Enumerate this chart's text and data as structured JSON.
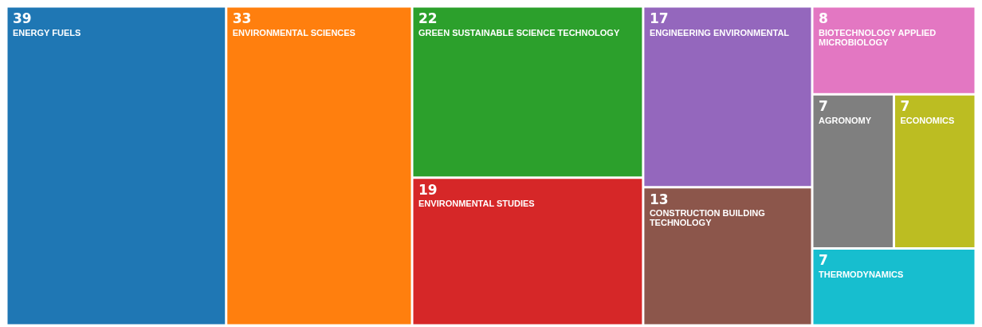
{
  "chart_data": {
    "type": "other",
    "categories": [
      "ENERGY FUELS",
      "ENVIRONMENTAL SCIENCES",
      "GREEN SUSTAINABLE SCIENCE TECHNOLOGY",
      "ENVIRONMENTAL STUDIES",
      "ENGINEERING ENVIRONMENTAL",
      "CONSTRUCTION BUILDING TECHNOLOGY",
      "BIOTECHNOLOGY APPLIED MICROBIOLOGY",
      "AGRONOMY",
      "ECONOMICS",
      "THERMODYNAMICS"
    ],
    "values": [
      39,
      33,
      22,
      19,
      17,
      13,
      8,
      7,
      7,
      7
    ],
    "colors": [
      "#1f77b4",
      "#ff7f0e",
      "#2ca02c",
      "#d62728",
      "#9467bd",
      "#8c564b",
      "#e377c2",
      "#7f7f7f",
      "#bcbd22",
      "#17becf"
    ],
    "data_labels": true
  }
}
